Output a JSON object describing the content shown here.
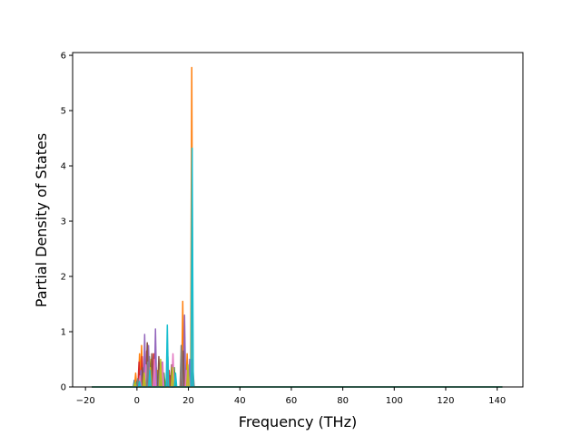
{
  "chart_data": {
    "type": "area",
    "title": "",
    "xlabel": "Frequency (THz)",
    "ylabel": "Partial Density of States",
    "xlim": [
      -25,
      150
    ],
    "ylim": [
      0,
      6.05
    ],
    "x_ticks": [
      -20,
      0,
      20,
      40,
      60,
      80,
      100,
      120,
      140
    ],
    "y_ticks": [
      0,
      1,
      2,
      3,
      4,
      5,
      6
    ],
    "x_tick_labels": [
      "−20",
      "0",
      "20",
      "40",
      "60",
      "80",
      "100",
      "120",
      "140"
    ],
    "y_tick_labels": [
      "0",
      "1",
      "2",
      "3",
      "4",
      "5",
      "6"
    ],
    "grid": false,
    "legend": "none",
    "baseline_x_range": [
      -17.5,
      142
    ],
    "series": [
      {
        "color": "#1f77b4",
        "peaks": [
          [
            -1.0,
            0.12
          ],
          [
            0.5,
            0.05
          ],
          [
            3.0,
            0.15
          ],
          [
            6.0,
            0.1
          ],
          [
            9.5,
            0.12
          ],
          [
            13.0,
            0.2
          ],
          [
            21.5,
            0.5
          ]
        ]
      },
      {
        "color": "#ff7f0e",
        "peaks": [
          [
            -0.5,
            0.25
          ],
          [
            1.0,
            0.6
          ],
          [
            1.8,
            0.75
          ],
          [
            3.2,
            0.4
          ],
          [
            5.5,
            0.5
          ],
          [
            8.0,
            0.3
          ],
          [
            11.5,
            0.2
          ],
          [
            17.8,
            1.55
          ],
          [
            19.5,
            0.6
          ],
          [
            21.3,
            5.78
          ]
        ]
      },
      {
        "color": "#2ca02c",
        "peaks": [
          [
            0.0,
            0.1
          ],
          [
            2.5,
            0.3
          ],
          [
            4.8,
            0.55
          ],
          [
            7.5,
            0.35
          ],
          [
            10.5,
            0.25
          ],
          [
            14.5,
            0.35
          ],
          [
            21.6,
            0.25
          ]
        ]
      },
      {
        "color": "#d62728",
        "peaks": [
          [
            0.8,
            0.45
          ],
          [
            2.0,
            0.55
          ],
          [
            3.8,
            0.65
          ],
          [
            6.5,
            0.6
          ],
          [
            9.0,
            0.4
          ],
          [
            12.5,
            0.3
          ],
          [
            17.5,
            0.2
          ]
        ]
      },
      {
        "color": "#9467bd",
        "peaks": [
          [
            1.5,
            0.3
          ],
          [
            3.0,
            0.95
          ],
          [
            4.5,
            0.75
          ],
          [
            7.2,
            1.05
          ],
          [
            9.8,
            0.45
          ],
          [
            18.5,
            1.3
          ],
          [
            20.5,
            0.5
          ]
        ]
      },
      {
        "color": "#8c564b",
        "peaks": [
          [
            2.2,
            0.35
          ],
          [
            4.0,
            0.8
          ],
          [
            5.8,
            0.6
          ],
          [
            8.5,
            0.55
          ],
          [
            13.5,
            0.4
          ],
          [
            18.0,
            0.65
          ]
        ]
      },
      {
        "color": "#e377c2",
        "peaks": [
          [
            1.2,
            0.2
          ],
          [
            3.5,
            0.4
          ],
          [
            6.8,
            0.5
          ],
          [
            10.0,
            0.45
          ],
          [
            14.0,
            0.6
          ],
          [
            19.2,
            0.3
          ]
        ]
      },
      {
        "color": "#7f7f7f",
        "peaks": [
          [
            0.3,
            0.15
          ],
          [
            4.2,
            0.45
          ],
          [
            8.8,
            0.3
          ],
          [
            12.0,
            0.55
          ],
          [
            17.2,
            0.75
          ],
          [
            21.8,
            0.3
          ]
        ]
      },
      {
        "color": "#bcbd22",
        "peaks": [
          [
            -0.8,
            0.08
          ],
          [
            2.8,
            0.25
          ],
          [
            5.2,
            0.35
          ],
          [
            9.2,
            0.5
          ],
          [
            13.8,
            0.35
          ],
          [
            19.8,
            0.4
          ]
        ]
      },
      {
        "color": "#17becf",
        "peaks": [
          [
            1.0,
            0.1
          ],
          [
            5.0,
            0.3
          ],
          [
            11.8,
            1.12
          ],
          [
            15.0,
            0.25
          ],
          [
            21.45,
            4.32
          ]
        ]
      }
    ]
  }
}
